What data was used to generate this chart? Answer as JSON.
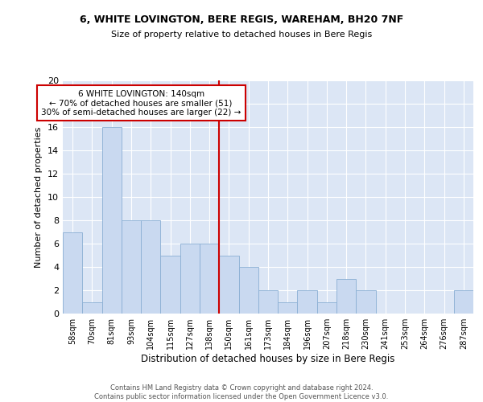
{
  "title1": "6, WHITE LOVINGTON, BERE REGIS, WAREHAM, BH20 7NF",
  "title2": "Size of property relative to detached houses in Bere Regis",
  "xlabel": "Distribution of detached houses by size in Bere Regis",
  "ylabel": "Number of detached properties",
  "categories": [
    "58sqm",
    "70sqm",
    "81sqm",
    "93sqm",
    "104sqm",
    "115sqm",
    "127sqm",
    "138sqm",
    "150sqm",
    "161sqm",
    "173sqm",
    "184sqm",
    "196sqm",
    "207sqm",
    "218sqm",
    "230sqm",
    "241sqm",
    "253sqm",
    "264sqm",
    "276sqm",
    "287sqm"
  ],
  "values": [
    7,
    1,
    16,
    8,
    8,
    5,
    6,
    6,
    5,
    4,
    2,
    1,
    2,
    1,
    3,
    2,
    0,
    0,
    0,
    0,
    2
  ],
  "bar_color": "#c9d9f0",
  "bar_edge_color": "#8aafd4",
  "vline_x": 7.5,
  "vline_color": "#cc0000",
  "annotation_text": "6 WHITE LOVINGTON: 140sqm\n← 70% of detached houses are smaller (51)\n30% of semi-detached houses are larger (22) →",
  "annotation_box_color": "#ffffff",
  "annotation_box_edge": "#cc0000",
  "ylim": [
    0,
    20
  ],
  "yticks": [
    0,
    2,
    4,
    6,
    8,
    10,
    12,
    14,
    16,
    18,
    20
  ],
  "background_color": "#dce6f5",
  "footer1": "Contains HM Land Registry data © Crown copyright and database right 2024.",
  "footer2": "Contains public sector information licensed under the Open Government Licence v3.0."
}
